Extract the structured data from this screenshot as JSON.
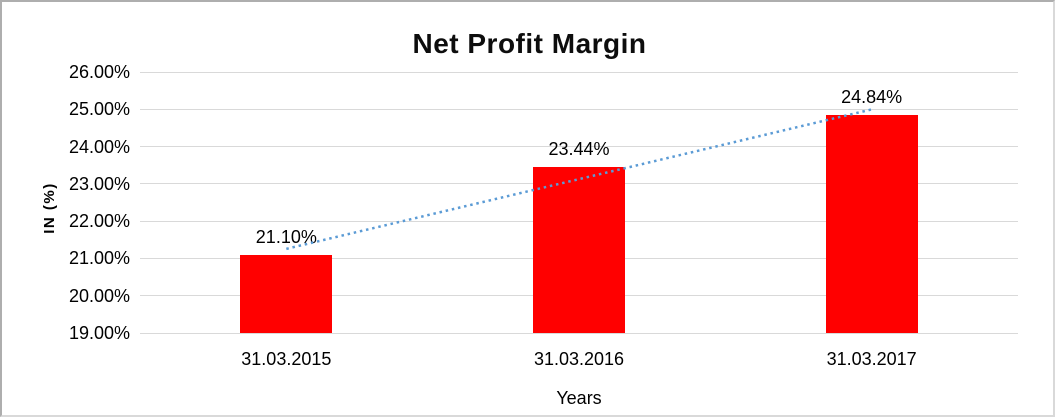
{
  "chart_data": {
    "type": "bar",
    "title": "Net Profit Margin",
    "categories": [
      "31.03.2015",
      "31.03.2016",
      "31.03.2017"
    ],
    "values": [
      21.1,
      23.44,
      24.84
    ],
    "data_labels": [
      "21.10%",
      "23.44%",
      "24.84%"
    ],
    "xlabel": "Years",
    "ylabel": "IN (%)",
    "ylim": [
      19,
      26
    ],
    "ytick_step": 1,
    "yticks": [
      "19.00%",
      "20.00%",
      "21.00%",
      "22.00%",
      "23.00%",
      "24.00%",
      "25.00%",
      "26.00%"
    ],
    "grid": true,
    "legend": "none",
    "bar_color": "#ff0000",
    "gridline_color": "#d9d9d9",
    "trendline": {
      "type": "linear",
      "style": "dotted",
      "color": "#5b9bd5"
    }
  }
}
